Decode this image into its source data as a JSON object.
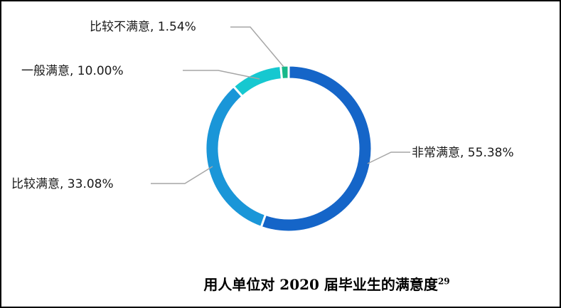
{
  "chart_data": {
    "type": "pie",
    "donut": true,
    "title": "用人单位对 2020 届毕业生的满意度",
    "title_footnote": "29",
    "slices": [
      {
        "name": "非常满意",
        "value": 55.38,
        "label": "非常满意, 55.38%",
        "color": "#1565c8"
      },
      {
        "name": "比较满意",
        "value": 33.08,
        "label": "比较满意, 33.08%",
        "color": "#1a96d8"
      },
      {
        "name": "一般满意",
        "value": 10.0,
        "label": "一般满意, 10.00%",
        "color": "#16c8d0"
      },
      {
        "name": "比较不满意",
        "value": 1.54,
        "label": "比较不满意, 1.54%",
        "color": "#16b88a"
      }
    ]
  }
}
